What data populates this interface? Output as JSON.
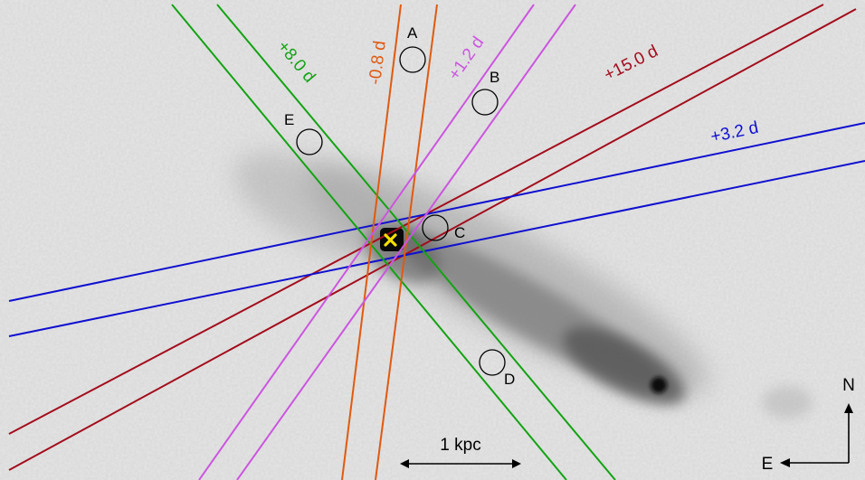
{
  "colors": {
    "sky": "#e6e6e6",
    "slit_red": "#a30d1c",
    "slit_blue": "#1010d0",
    "slit_green": "#12a312",
    "slit_orange": "#e05a10",
    "slit_magenta": "#cc55e0",
    "marker": "#f5e000",
    "ink": "#000000"
  },
  "slits": [
    {
      "label": "+15.0 d",
      "color": "#a30d1c"
    },
    {
      "label": "+3.2 d",
      "color": "#1010d0"
    },
    {
      "label": "+8.0 d",
      "color": "#12a312"
    },
    {
      "label": "-0.8 d",
      "color": "#e05a10"
    },
    {
      "label": "+1.2 d",
      "color": "#cc55e0"
    }
  ],
  "regions": [
    {
      "label": "A"
    },
    {
      "label": "B"
    },
    {
      "label": "C"
    },
    {
      "label": "D"
    },
    {
      "label": "E"
    }
  ],
  "scale_bar": {
    "label": "1 kpc"
  },
  "compass": {
    "north": "N",
    "east": "E"
  },
  "marker": {
    "name": "supernova-position"
  }
}
